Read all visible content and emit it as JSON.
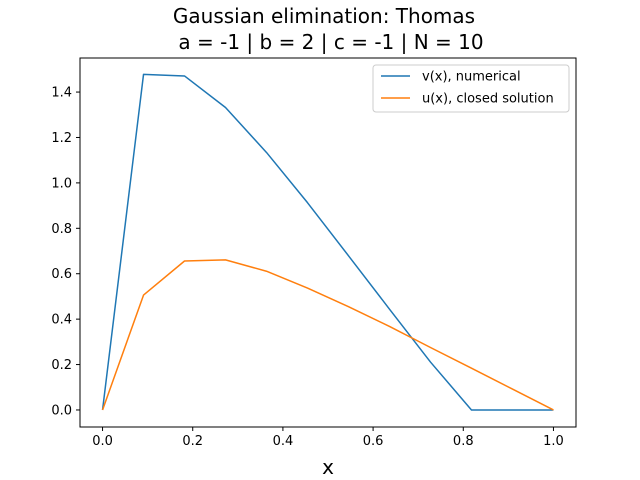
{
  "chart_data": {
    "type": "line",
    "title": "Gaussian elimination: Thomas",
    "subtitle": "a = -1 | b = 2 | c = -1 | N = 10",
    "xlabel": "x",
    "ylabel": "",
    "xlim": [
      -0.05,
      1.05
    ],
    "ylim": [
      -0.075,
      1.55
    ],
    "xticks": [
      0.0,
      0.2,
      0.4,
      0.6,
      0.8,
      1.0
    ],
    "xtick_labels": [
      "0.0",
      "0.2",
      "0.4",
      "0.6",
      "0.8",
      "1.0"
    ],
    "yticks": [
      0.0,
      0.2,
      0.4,
      0.6,
      0.8,
      1.0,
      1.2,
      1.4
    ],
    "ytick_labels": [
      "0.0",
      "0.2",
      "0.4",
      "0.6",
      "0.8",
      "1.0",
      "1.2",
      "1.4"
    ],
    "grid": false,
    "legend_position": "top-right",
    "series": [
      {
        "name": "v(x), numerical",
        "color": "#1f77b4",
        "x": [
          0.0,
          0.0909,
          0.1818,
          0.2727,
          0.3636,
          0.4545,
          0.5455,
          0.6364,
          0.7273,
          0.8182,
          0.9091,
          1.0
        ],
        "y": [
          0.0,
          1.478,
          1.471,
          1.332,
          1.134,
          0.913,
          0.679,
          0.444,
          0.211,
          0.0,
          0.0,
          0.0
        ]
      },
      {
        "name": "u(x), closed solution",
        "color": "#ff7f0e",
        "x": [
          0.0,
          0.0909,
          0.1818,
          0.2727,
          0.3636,
          0.4545,
          0.5455,
          0.6364,
          0.7273,
          0.8182,
          0.9091,
          1.0
        ],
        "y": [
          0.0,
          0.506,
          0.656,
          0.661,
          0.611,
          0.537,
          0.455,
          0.368,
          0.275,
          0.184,
          0.092,
          0.0
        ]
      }
    ]
  }
}
